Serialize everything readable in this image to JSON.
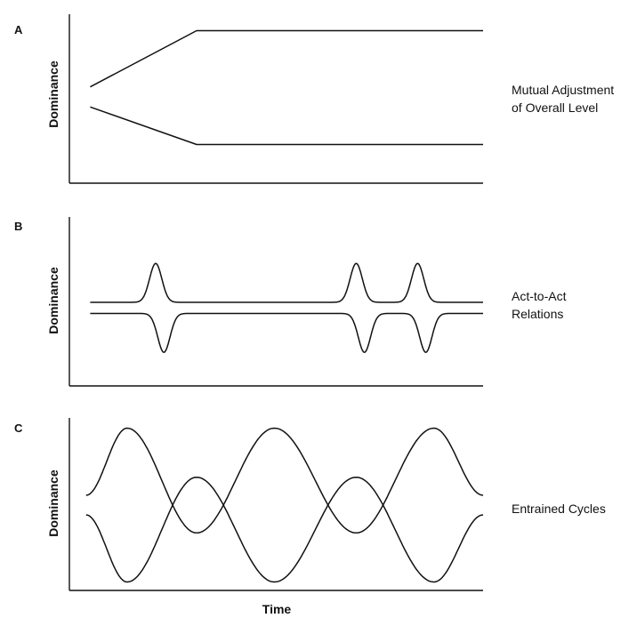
{
  "figure": {
    "x_label": "Time",
    "y_label": "Dominance"
  },
  "chart_data": [
    {
      "type": "line",
      "panel": "A",
      "label": "Mutual Adjustment of Overall Level",
      "label_lines": [
        "Mutual Adjustment",
        "of Overall Level"
      ],
      "ylabel": "Dominance",
      "xlim": [
        0,
        100
      ],
      "ylim": [
        0,
        100
      ],
      "series": [
        {
          "points": [
            [
              4,
              57
            ],
            [
              30,
              96
            ],
            [
              100,
              96
            ]
          ]
        },
        {
          "points": [
            [
              4,
              43
            ],
            [
              30,
              17
            ],
            [
              100,
              17
            ]
          ]
        }
      ]
    },
    {
      "type": "line",
      "panel": "B",
      "label": "Act-to-Act Relations",
      "label_lines": [
        "Act-to-Act",
        "Relations"
      ],
      "ylabel": "Dominance",
      "xlim": [
        0,
        100
      ],
      "ylim": [
        0,
        100
      ],
      "baseline_upper": 50,
      "baseline_lower": 42,
      "series": [
        {
          "kind": "spikes-up",
          "spike_x": [
            20,
            69,
            84
          ],
          "spike_height": 28,
          "spike_width": 1.5
        },
        {
          "kind": "spikes-down",
          "spike_x": [
            22,
            71,
            86
          ],
          "spike_height": 28,
          "spike_width": 1.5
        }
      ]
    },
    {
      "type": "line",
      "panel": "C",
      "label": "Entrained Cycles",
      "label_lines": [
        "Entrained Cycles"
      ],
      "ylabel": "Dominance",
      "xlabel": "Time",
      "xlim": [
        0,
        100
      ],
      "ylim": [
        0,
        100
      ],
      "series": [
        {
          "points": [
            [
              3,
              56
            ],
            [
              13,
              97
            ],
            [
              30,
              33
            ],
            [
              49,
              97
            ],
            [
              69,
              33
            ],
            [
              88,
              97
            ],
            [
              100,
              56
            ]
          ]
        },
        {
          "points": [
            [
              3,
              44
            ],
            [
              13,
              3
            ],
            [
              30,
              67
            ],
            [
              49,
              3
            ],
            [
              69,
              67
            ],
            [
              88,
              3
            ],
            [
              100,
              44
            ]
          ]
        }
      ]
    }
  ]
}
